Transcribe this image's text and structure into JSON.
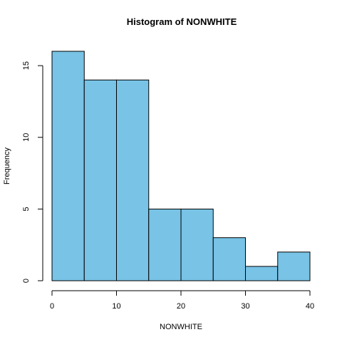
{
  "chart_data": {
    "type": "bar",
    "title": "Histogram of NONWHITE",
    "xlabel": "NONWHITE",
    "ylabel": "Frequency",
    "bins": [
      {
        "start": 0,
        "end": 5,
        "count": 16
      },
      {
        "start": 5,
        "end": 10,
        "count": 14
      },
      {
        "start": 10,
        "end": 15,
        "count": 14
      },
      {
        "start": 15,
        "end": 20,
        "count": 5
      },
      {
        "start": 20,
        "end": 25,
        "count": 5
      },
      {
        "start": 25,
        "end": 30,
        "count": 3
      },
      {
        "start": 30,
        "end": 35,
        "count": 1
      },
      {
        "start": 35,
        "end": 40,
        "count": 2
      }
    ],
    "xlim": [
      0,
      40
    ],
    "ylim": [
      0,
      16
    ],
    "x_ticks": [
      "0",
      "10",
      "20",
      "30",
      "40"
    ],
    "y_ticks": [
      "0",
      "5",
      "10",
      "15"
    ],
    "bar_color": "#78C3E6",
    "grid": false,
    "legend": "none"
  }
}
